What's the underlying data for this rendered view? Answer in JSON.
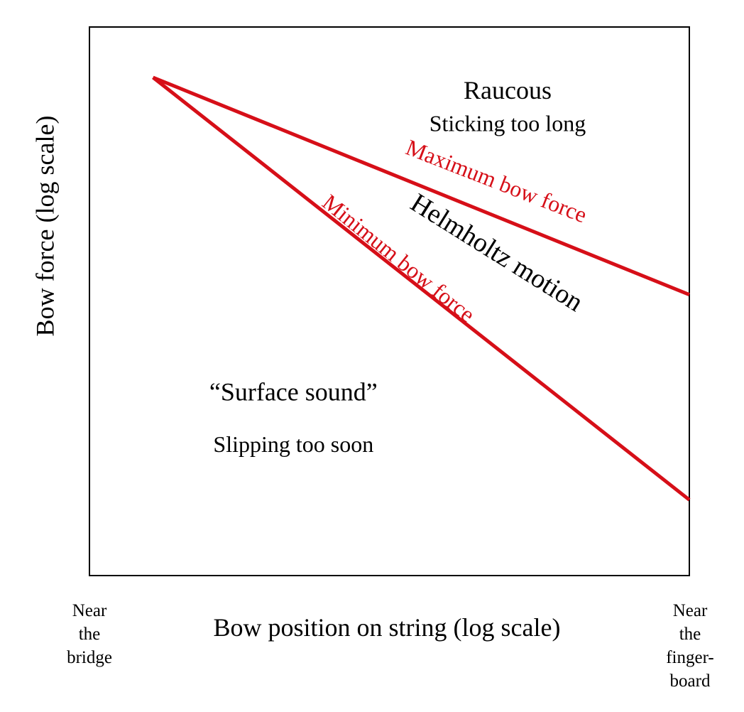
{
  "chart_data": {
    "type": "line",
    "xlabel": "Bow position on string (log scale)",
    "ylabel": "Bow force (log scale)",
    "x_edge_labels": {
      "left": [
        "Near",
        "the",
        "bridge"
      ],
      "right": [
        "Near",
        "the",
        "finger-",
        "board"
      ]
    },
    "xscale": "log",
    "yscale": "log",
    "xlim": [
      0,
      1
    ],
    "ylim": [
      0,
      1
    ],
    "grid": false,
    "legend": "none",
    "series": [
      {
        "name": "Maximum bow force",
        "x": [
          0.106,
          1.0
        ],
        "y": [
          0.908,
          0.512
        ]
      },
      {
        "name": "Minimum bow force",
        "x": [
          0.106,
          1.0
        ],
        "y": [
          0.908,
          0.138
        ]
      }
    ],
    "annotations": [
      {
        "key": "raucous",
        "text": "Raucous",
        "x": 0.697,
        "y": 0.88,
        "rotation": 0,
        "size": 36,
        "color": "text"
      },
      {
        "key": "sticking",
        "text": "Sticking too long",
        "x": 0.697,
        "y": 0.82,
        "rotation": 0,
        "size": 32,
        "color": "text"
      },
      {
        "key": "max_label",
        "text": "Maximum bow force",
        "x": 0.677,
        "y": 0.715,
        "rotation": 21.3,
        "size": 32,
        "color": "line"
      },
      {
        "key": "helmholtz",
        "text": "Helmholtz motion",
        "x": 0.677,
        "y": 0.585,
        "rotation": 32,
        "size": 38,
        "color": "text"
      },
      {
        "key": "min_label",
        "text": "Minimum bow force",
        "x": 0.513,
        "y": 0.575,
        "rotation": 38.9,
        "size": 32,
        "color": "line"
      },
      {
        "key": "surface",
        "text": "“Surface sound”",
        "x": 0.34,
        "y": 0.33,
        "rotation": 0,
        "size": 36,
        "color": "text"
      },
      {
        "key": "slipping",
        "text": "Slipping too soon",
        "x": 0.34,
        "y": 0.235,
        "rotation": 0,
        "size": 32,
        "color": "text"
      }
    ]
  },
  "colors": {
    "line": "#d60f18",
    "text": "#000000",
    "frame": "#000000"
  }
}
